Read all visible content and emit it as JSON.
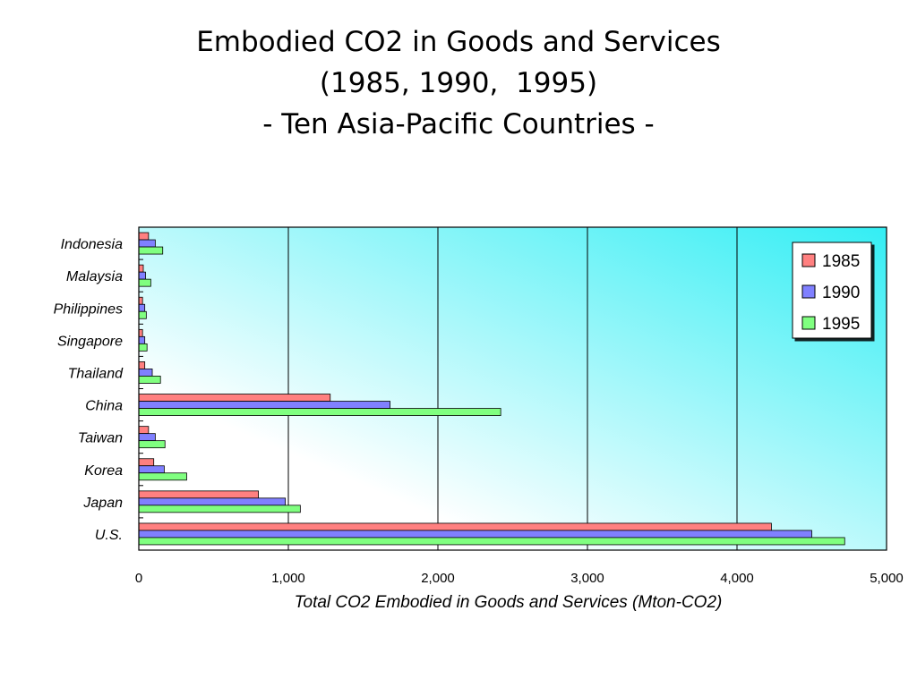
{
  "title_lines": [
    "Embodied CO2 in Goods and Services",
    "(1985, 1990,  1995)",
    "- Ten Asia-Pacific Countries -"
  ],
  "chart_data": {
    "type": "bar",
    "orientation": "horizontal",
    "categories": [
      "Indonesia",
      "Malaysia",
      "Philippines",
      "Singapore",
      "Thailand",
      "China",
      "Taiwan",
      "Korea",
      "Japan",
      "U.S."
    ],
    "series": [
      {
        "name": "1985",
        "color": "#ff8080",
        "values": [
          65,
          30,
          25,
          25,
          40,
          1280,
          65,
          100,
          800,
          4230
        ]
      },
      {
        "name": "1990",
        "color": "#8080ff",
        "values": [
          110,
          45,
          40,
          40,
          90,
          1680,
          110,
          170,
          980,
          4500
        ]
      },
      {
        "name": "1995",
        "color": "#80ff80",
        "values": [
          160,
          80,
          50,
          55,
          145,
          2420,
          175,
          320,
          1080,
          4720
        ]
      }
    ],
    "xlabel": "Total CO2 Embodied in Goods and Services (Mton-CO2)",
    "xlim": [
      0,
      5000
    ],
    "xticks": [
      0,
      1000,
      2000,
      3000,
      4000,
      5000
    ],
    "xtick_labels": [
      "0",
      "1,000",
      "2,000",
      "3,000",
      "4,000",
      "5,000"
    ],
    "grid": true,
    "legend_position": "top-right",
    "background_gradient": [
      "#ffffff",
      "#33eef4"
    ]
  }
}
